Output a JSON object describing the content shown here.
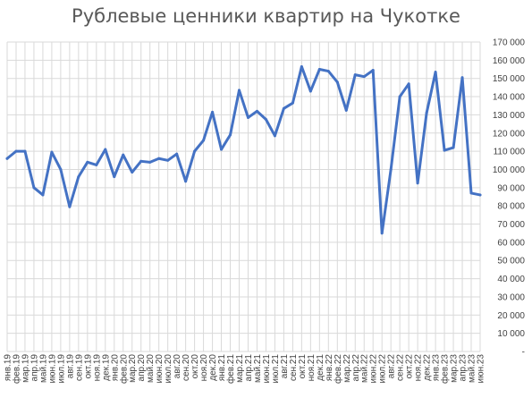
{
  "chart_data": {
    "type": "line",
    "title": "Рублевые ценники квартир на Чукотке",
    "xlabel": "",
    "ylabel": "",
    "ylim": [
      0,
      170000
    ],
    "yticks": [
      {
        "value": 0,
        "label": "-"
      },
      {
        "value": 10000,
        "label": "10 000"
      },
      {
        "value": 20000,
        "label": "20 000"
      },
      {
        "value": 30000,
        "label": "30 000"
      },
      {
        "value": 40000,
        "label": "40 000"
      },
      {
        "value": 50000,
        "label": "50 000"
      },
      {
        "value": 60000,
        "label": "60 000"
      },
      {
        "value": 70000,
        "label": "70 000"
      },
      {
        "value": 80000,
        "label": "80 000"
      },
      {
        "value": 90000,
        "label": "90 000"
      },
      {
        "value": 100000,
        "label": "100 000"
      },
      {
        "value": 110000,
        "label": "110 000"
      },
      {
        "value": 120000,
        "label": "120 000"
      },
      {
        "value": 130000,
        "label": "130 000"
      },
      {
        "value": 140000,
        "label": "140 000"
      },
      {
        "value": 150000,
        "label": "150 000"
      },
      {
        "value": 160000,
        "label": "160 000"
      },
      {
        "value": 170000,
        "label": "170 000"
      }
    ],
    "grid": true,
    "legend": "none",
    "colors": {
      "line": "#4472c4",
      "grid": "#d9d9d9",
      "text": "#404040",
      "title": "#595959"
    },
    "categories": [
      "янв.19",
      "фев.19",
      "мар.19",
      "апр.19",
      "май.19",
      "июн.19",
      "июл.19",
      "авг.19",
      "сен.19",
      "окт.19",
      "ноя.19",
      "дек.19",
      "янв.20",
      "фев.20",
      "мар.20",
      "апр.20",
      "май.20",
      "июн.20",
      "июл.20",
      "авг.20",
      "сен.20",
      "окт.20",
      "ноя.20",
      "дек.20",
      "янв.21",
      "фев.21",
      "мар.21",
      "апр.21",
      "май.21",
      "июн.21",
      "июл.21",
      "авг.21",
      "сен.21",
      "окт.21",
      "ноя.21",
      "дек.21",
      "янв.22",
      "фев.22",
      "мар.22",
      "апр.22",
      "май.22",
      "июн.22",
      "июл.22",
      "авг.22",
      "сен.22",
      "окт.22",
      "ноя.22",
      "дек.22",
      "янв.23",
      "фев.23",
      "мар.23",
      "апр.23",
      "май.23",
      "июн.23"
    ],
    "series": [
      {
        "values": [
          106000,
          110000,
          110000,
          90000,
          86000,
          109500,
          100000,
          79500,
          96000,
          104000,
          102500,
          111000,
          96000,
          108000,
          98500,
          104500,
          104000,
          106000,
          105000,
          108500,
          93500,
          110000,
          116000,
          131500,
          111000,
          119000,
          143500,
          128500,
          132000,
          127500,
          118500,
          133500,
          136500,
          156500,
          143000,
          155000,
          154000,
          148000,
          132500,
          152000,
          151000,
          154500,
          65000,
          100000,
          140000,
          147000,
          92500,
          131000,
          153500,
          110500,
          112000,
          150500,
          87000,
          86000
        ]
      }
    ]
  }
}
